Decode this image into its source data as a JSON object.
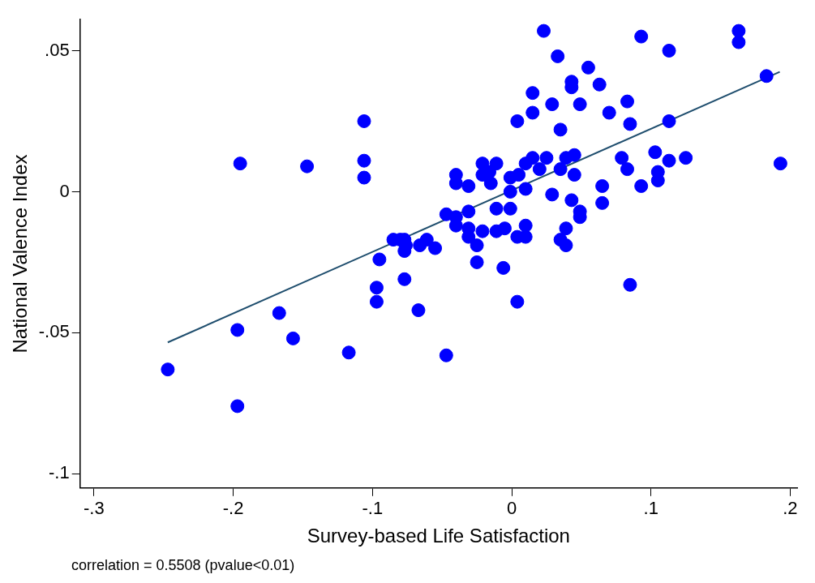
{
  "chart_data": {
    "type": "scatter",
    "xlabel": "Survey-based Life Satisfaction",
    "ylabel": "National Valence Index",
    "annotations": [
      "correlation = 0.5508 (pvalue<0.01)"
    ],
    "xlim": [
      -0.31,
      0.205
    ],
    "ylim": [
      -0.105,
      0.061
    ],
    "xticks": [
      {
        "value": -0.3,
        "label": "-.3"
      },
      {
        "value": -0.2,
        "label": "-.2"
      },
      {
        "value": -0.1,
        "label": "-.1"
      },
      {
        "value": 0,
        "label": "0"
      },
      {
        "value": 0.1,
        "label": ".1"
      },
      {
        "value": 0.2,
        "label": ".2"
      }
    ],
    "yticks": [
      {
        "value": -0.1,
        "label": "-.1"
      },
      {
        "value": -0.05,
        "label": "-.05"
      },
      {
        "value": 0,
        "label": "0"
      },
      {
        "value": 0.05,
        "label": ".05"
      }
    ],
    "grid": false,
    "legend": false,
    "series": [
      {
        "type": "scatter",
        "color": "#0000ff",
        "marker": "circle",
        "x": [
          -0.247,
          -0.197,
          -0.197,
          -0.195,
          -0.167,
          -0.157,
          -0.147,
          -0.117,
          -0.106,
          -0.106,
          -0.106,
          -0.097,
          -0.097,
          -0.095,
          -0.077,
          -0.067,
          -0.047,
          0.004,
          0.085,
          -0.025,
          -0.006,
          -0.085,
          -0.08,
          -0.077,
          -0.076,
          -0.077,
          -0.066,
          -0.061,
          -0.055,
          -0.047,
          -0.04,
          -0.04,
          -0.031,
          -0.031,
          -0.031,
          -0.025,
          -0.021,
          -0.011,
          -0.011,
          -0.005,
          -0.001,
          -0.001,
          0.01,
          0.01,
          0.004,
          0.01,
          -0.04,
          -0.04,
          -0.031,
          -0.021,
          -0.011,
          -0.021,
          -0.016,
          -0.015,
          -0.001,
          0.005,
          0.01,
          0.015,
          0.02,
          0.025,
          0.035,
          0.039,
          0.045,
          0.045,
          0.029,
          0.043,
          0.049,
          0.049,
          0.039,
          0.035,
          0.039,
          0.065,
          0.065,
          0.079,
          0.083,
          0.093,
          0.103,
          0.105,
          0.105,
          0.113,
          0.125,
          0.023,
          0.033,
          0.055,
          0.043,
          0.043,
          0.063,
          0.015,
          0.029,
          0.049,
          0.083,
          0.004,
          0.015,
          0.07,
          0.085,
          0.035,
          0.113,
          0.093,
          0.113,
          0.163,
          0.163,
          0.183,
          0.193
        ],
        "values": [
          -0.063,
          -0.049,
          -0.076,
          0.01,
          -0.043,
          -0.052,
          0.009,
          -0.057,
          0.025,
          0.011,
          0.005,
          -0.034,
          -0.039,
          -0.024,
          -0.031,
          -0.042,
          -0.058,
          -0.039,
          -0.033,
          -0.025,
          -0.027,
          -0.017,
          -0.017,
          -0.017,
          -0.019,
          -0.021,
          -0.019,
          -0.017,
          -0.02,
          -0.008,
          -0.009,
          -0.012,
          -0.007,
          -0.013,
          -0.016,
          -0.019,
          -0.014,
          -0.006,
          -0.014,
          -0.013,
          -0.006,
          0,
          0.001,
          -0.012,
          -0.016,
          -0.016,
          0.006,
          0.003,
          0.002,
          0.01,
          0.01,
          0.006,
          0.007,
          0.003,
          0.005,
          0.006,
          0.01,
          0.012,
          0.008,
          0.012,
          0.008,
          0.012,
          0.013,
          0.006,
          -0.001,
          -0.003,
          -0.007,
          -0.009,
          -0.013,
          -0.017,
          -0.019,
          0.002,
          -0.004,
          0.012,
          0.008,
          0.002,
          0.014,
          0.007,
          0.004,
          0.011,
          0.012,
          0.057,
          0.048,
          0.044,
          0.039,
          0.037,
          0.038,
          0.035,
          0.031,
          0.031,
          0.032,
          0.025,
          0.028,
          0.028,
          0.024,
          0.022,
          0.025,
          0.055,
          0.05,
          0.057,
          0.053,
          0.041,
          0.01
        ]
      },
      {
        "type": "line",
        "color": "#1f4e6e",
        "marker": "none",
        "line_style": "solid",
        "x": [
          -0.247,
          0.1925
        ],
        "values": [
          -0.0534,
          0.0425
        ]
      }
    ]
  }
}
